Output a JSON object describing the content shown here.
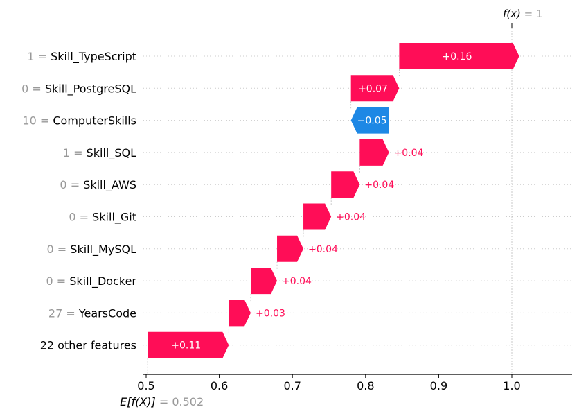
{
  "chart_data": {
    "type": "waterfall",
    "title": "",
    "xlabel": "",
    "base_value": 0.502,
    "base_value_label": "0.502",
    "base_value_prefix": "E[f(X)]",
    "output_value": 1.0,
    "output_value_label": "1",
    "output_value_prefix": "f(x)",
    "xlim": [
      0.5,
      1.08
    ],
    "xticks": [
      0.5,
      0.6,
      0.7,
      0.8,
      0.9,
      1.0
    ],
    "xtick_labels": [
      "0.5",
      "0.6",
      "0.7",
      "0.8",
      "0.9",
      "1.0"
    ],
    "grid": "horizontal dotted per row",
    "features": [
      {
        "value": "1",
        "name": "Skill_TypeScript",
        "shap": 0.164,
        "label": "+0.16"
      },
      {
        "value": "0",
        "name": "Skill_PostgreSQL",
        "shap": 0.066,
        "label": "+0.07"
      },
      {
        "value": "10",
        "name": "ComputerSkills",
        "shap": -0.052,
        "label": "−0.05"
      },
      {
        "value": "1",
        "name": "Skill_SQL",
        "shap": 0.04,
        "label": "+0.04"
      },
      {
        "value": "0",
        "name": "Skill_AWS",
        "shap": 0.039,
        "label": "+0.04"
      },
      {
        "value": "0",
        "name": "Skill_Git",
        "shap": 0.038,
        "label": "+0.04"
      },
      {
        "value": "0",
        "name": "Skill_MySQL",
        "shap": 0.036,
        "label": "+0.04"
      },
      {
        "value": "0",
        "name": "Skill_Docker",
        "shap": 0.036,
        "label": "+0.04"
      },
      {
        "value": "27",
        "name": "YearsCode",
        "shap": 0.03,
        "label": "+0.03"
      },
      {
        "value": "",
        "name": "22 other features",
        "shap": 0.111,
        "label": "+0.11"
      }
    ],
    "colors": {
      "positive": "#ff0d57",
      "negative": "#1e88e5",
      "muted": "#999999"
    }
  }
}
